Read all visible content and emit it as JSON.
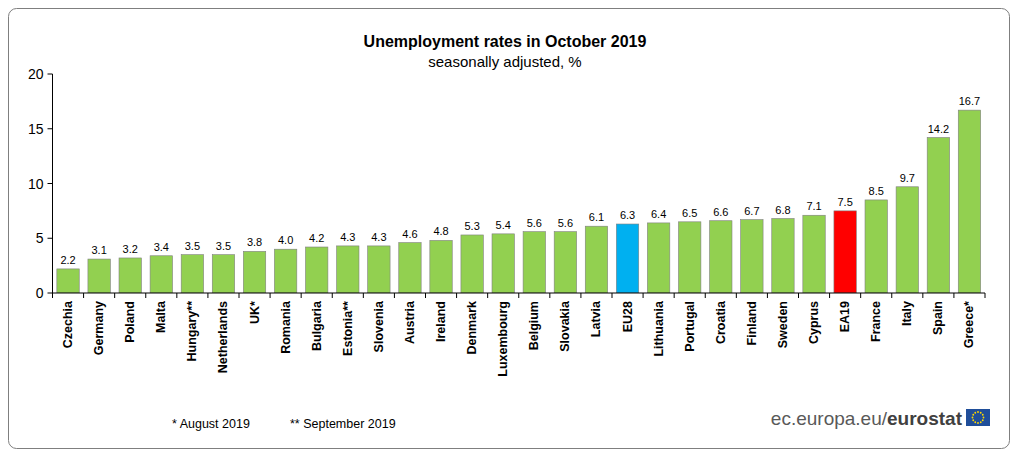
{
  "chart_data": {
    "type": "bar",
    "title": "Unemployment rates in October 2019",
    "subtitle": "seasonally adjusted, %",
    "categories": [
      "Czechia",
      "Germany",
      "Poland",
      "Malta",
      "Hungary**",
      "Netherlands",
      "UK*",
      "Romania",
      "Bulgaria",
      "Estonia**",
      "Slovenia",
      "Austria",
      "Ireland",
      "Denmark",
      "Luxembourg",
      "Belgium",
      "Slovakia",
      "Latvia",
      "EU28",
      "Lithuania",
      "Portugal",
      "Croatia",
      "Finland",
      "Sweden",
      "Cyprus",
      "EA19",
      "France",
      "Italy",
      "Spain",
      "Greece*"
    ],
    "values": [
      2.2,
      3.1,
      3.2,
      3.4,
      3.5,
      3.5,
      3.8,
      4.0,
      4.2,
      4.3,
      4.3,
      4.6,
      4.8,
      5.3,
      5.4,
      5.6,
      5.6,
      6.1,
      6.3,
      6.4,
      6.5,
      6.6,
      6.7,
      6.8,
      7.1,
      7.5,
      8.5,
      9.7,
      14.2,
      16.7
    ],
    "value_labels": [
      "2.2",
      "3.1",
      "3.2",
      "3.4",
      "3.5",
      "3.5",
      "3.8",
      "4.0",
      "4.2",
      "4.3",
      "4.3",
      "4.6",
      "4.8",
      "5.3",
      "5.4",
      "5.6",
      "5.6",
      "6.1",
      "6.3",
      "6.4",
      "6.5",
      "6.6",
      "6.7",
      "6.8",
      "7.1",
      "7.5",
      "8.5",
      "9.7",
      "14.2",
      "16.7"
    ],
    "colors": [
      "#92d050",
      "#92d050",
      "#92d050",
      "#92d050",
      "#92d050",
      "#92d050",
      "#92d050",
      "#92d050",
      "#92d050",
      "#92d050",
      "#92d050",
      "#92d050",
      "#92d050",
      "#92d050",
      "#92d050",
      "#92d050",
      "#92d050",
      "#92d050",
      "#00b0f0",
      "#92d050",
      "#92d050",
      "#92d050",
      "#92d050",
      "#92d050",
      "#92d050",
      "#ff0000",
      "#92d050",
      "#92d050",
      "#92d050",
      "#92d050"
    ],
    "ylim": [
      0,
      20
    ],
    "yticks": [
      0,
      5,
      10,
      15,
      20
    ],
    "grid": false,
    "data_labels": true,
    "annotations": [
      "* August 2019",
      "** September 2019"
    ],
    "source": "ec.europa.eu/eurostat"
  }
}
